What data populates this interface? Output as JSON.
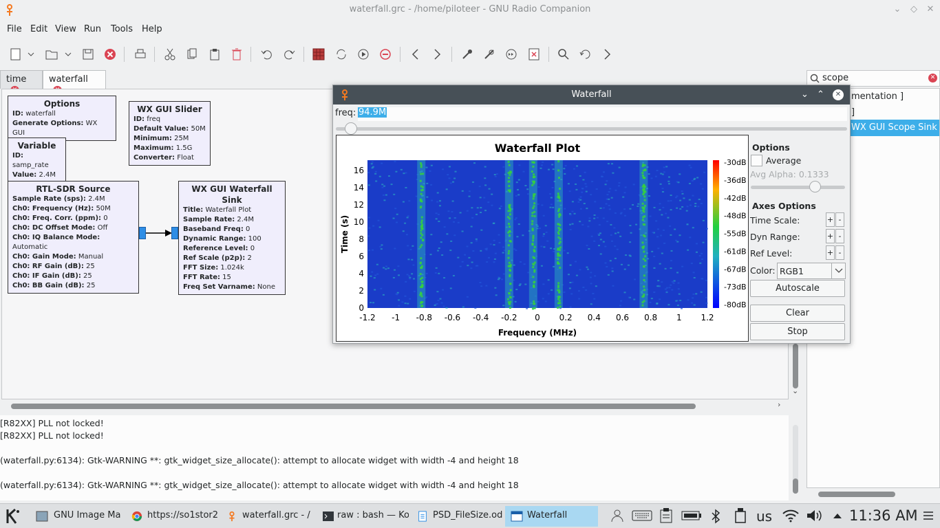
{
  "window": {
    "title": "waterfall.grc - /home/piloteer - GNU Radio Companion"
  },
  "menu": [
    "File",
    "Edit",
    "View",
    "Run",
    "Tools",
    "Help"
  ],
  "tabs": [
    {
      "label": "time",
      "active": false
    },
    {
      "label": "waterfall",
      "active": true
    }
  ],
  "blocks": {
    "options": {
      "title": "Options",
      "rows": [
        [
          "ID:",
          "waterfall"
        ],
        [
          "Generate Options:",
          "WX GUI"
        ]
      ]
    },
    "variable": {
      "title": "Variable",
      "rows": [
        [
          "ID:",
          "samp_rate"
        ],
        [
          "Value:",
          "2.4M"
        ]
      ]
    },
    "slider": {
      "title": "WX GUI Slider",
      "rows": [
        [
          "ID:",
          "freq"
        ],
        [
          "Default Value:",
          "50M"
        ],
        [
          "Minimum:",
          "25M"
        ],
        [
          "Maximum:",
          "1.5G"
        ],
        [
          "Converter:",
          "Float"
        ]
      ]
    },
    "rtl": {
      "title": "RTL-SDR Source",
      "rows": [
        [
          "Sample Rate (sps):",
          "2.4M"
        ],
        [
          "Ch0: Frequency (Hz):",
          "50M"
        ],
        [
          "Ch0: Freq. Corr. (ppm):",
          "0"
        ],
        [
          "Ch0: DC Offset Mode:",
          "Off"
        ],
        [
          "Ch0: IQ Balance Mode:",
          "Automatic"
        ],
        [
          "Ch0: Gain Mode:",
          "Manual"
        ],
        [
          "Ch0: RF Gain (dB):",
          "25"
        ],
        [
          "Ch0: IF Gain (dB):",
          "25"
        ],
        [
          "Ch0: BB Gain (dB):",
          "25"
        ]
      ]
    },
    "wfsink": {
      "title": "WX GUI Waterfall Sink",
      "rows": [
        [
          "Title:",
          "Waterfall Plot"
        ],
        [
          "Sample Rate:",
          "2.4M"
        ],
        [
          "Baseband Freq:",
          "0"
        ],
        [
          "Dynamic Range:",
          "100"
        ],
        [
          "Reference Level:",
          "0"
        ],
        [
          "Ref Scale (p2p):",
          "2"
        ],
        [
          "FFT Size:",
          "1.024k"
        ],
        [
          "FFT Rate:",
          "15"
        ],
        [
          "Freq Set Varname:",
          "None"
        ]
      ]
    }
  },
  "search": {
    "value": "scope"
  },
  "tree": {
    "item1": "mentation ]",
    "item2": "]",
    "selected": "WX GUI Scope Sink"
  },
  "console": [
    "[R82XX] PLL not locked!",
    "[R82XX] PLL not locked!",
    "",
    "(waterfall.py:6134): Gtk-WARNING **: gtk_widget_size_allocate(): attempt to allocate widget with width -4 and height 18",
    "",
    "(waterfall.py:6134): Gtk-WARNING **: gtk_widget_size_allocate(): attempt to allocate widget with width -4 and height 18"
  ],
  "waterfall_window": {
    "title": "Waterfall",
    "freq_label": "freq:",
    "freq_value": "94.9M",
    "slider_position": 0.03,
    "options": {
      "heading": "Options",
      "average_label": "Average",
      "average_checked": false,
      "avg_alpha_label": "Avg Alpha: 0.1333",
      "avg_alpha_position": 0.68,
      "axes_heading": "Axes Options",
      "time_scale_label": "Time Scale:",
      "dyn_range_label": "Dyn Range:",
      "ref_level_label": "Ref Level:",
      "color_label": "Color:",
      "color_value": "RGB1",
      "autoscale_label": "Autoscale",
      "clear_label": "Clear",
      "stop_label": "Stop"
    }
  },
  "chart_data": {
    "type": "heatmap",
    "title": "Waterfall Plot",
    "xlabel": "Frequency (MHz)",
    "ylabel": "Time (s)",
    "xlim": [
      -1.2,
      1.2
    ],
    "ylim": [
      0,
      17.2
    ],
    "x_ticks": [
      "-1.2",
      "-1",
      "-0.8",
      "-0.6",
      "-0.4",
      "-0.2",
      "0",
      "0.2",
      "0.4",
      "0.6",
      "0.8",
      "1",
      "1.2"
    ],
    "y_ticks": [
      "0",
      "2",
      "4",
      "6",
      "8",
      "10",
      "12",
      "14",
      "16"
    ],
    "colorbar_ticks": [
      "-30dB",
      "-36dB",
      "-42dB",
      "-48dB",
      "-55dB",
      "-61dB",
      "-67dB",
      "-73dB",
      "-80dB"
    ],
    "signal_bands_mhz": [
      -0.82,
      -0.2,
      -0.03,
      0.15,
      0.75
    ],
    "colors": {
      "low": "#1a3cc8",
      "mid": "#29a0c0",
      "high": "#35d040"
    }
  },
  "taskbar": {
    "tasks": [
      "GNU Image Ma",
      "https://so1stor2",
      "waterfall.grc - /",
      "raw : bash — Ko",
      "PSD_FileSize.od",
      "Waterfall"
    ],
    "lang": "us",
    "clock": "11:36 AM"
  },
  "icons": {
    "app": "gnuradio-icon",
    "close": "close-icon"
  }
}
